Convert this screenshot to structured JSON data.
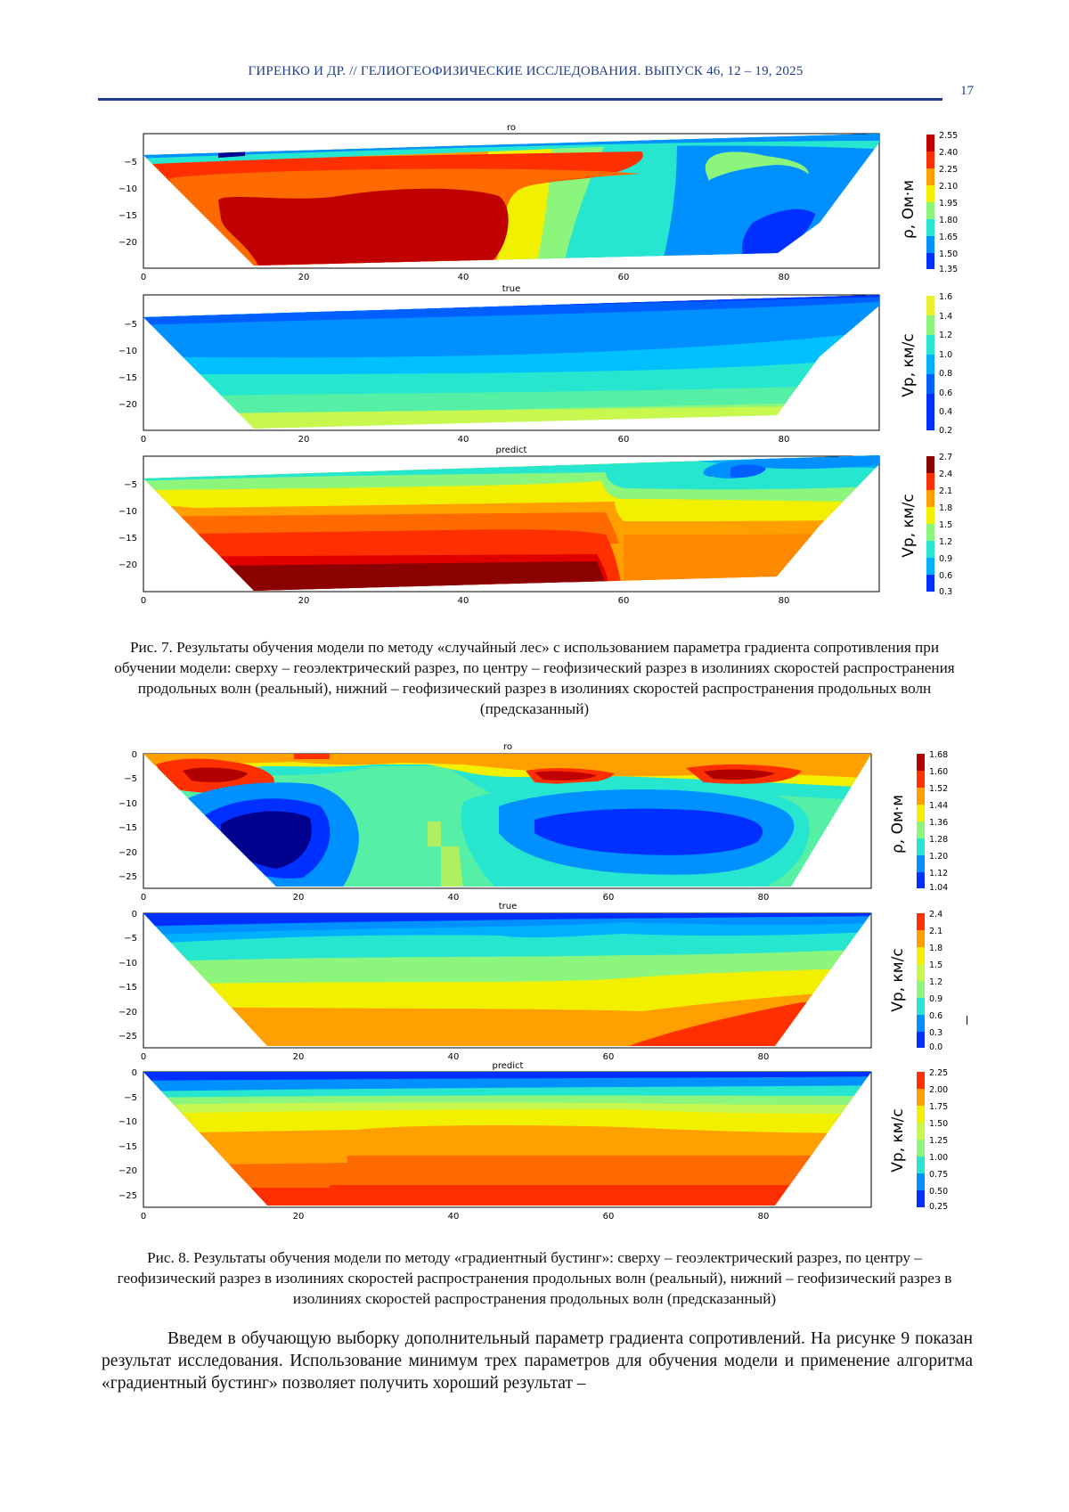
{
  "header": {
    "running_title": "ГИРЕНКО И ДР. // ГЕЛИОГЕОФИЗИЧЕСКИЕ ИССЛЕДОВАНИЯ. ВЫПУСК 46, 12 – 19, 2025",
    "page_number": "17"
  },
  "figures": [
    {
      "caption": "Рис. 7. Результаты обучения модели по методу «случайный лес» с использованием параметра градиента сопротивления при обучении модели: сверху – геоэлектрический разрез, по центру – геофизический разрез в изолиниях скоростей распространения продольных волн (реальный), нижний – геофизический разрез в изолиниях скоростей распространения продольных волн (предсказанный)",
      "panels": [
        {
          "title": "ro",
          "colorbar_label": "ρ, Ом·м",
          "x_ticks": [
            "0",
            "20",
            "40",
            "60",
            "80"
          ],
          "y_ticks": [
            "−5",
            "−10",
            "−15",
            "−20"
          ],
          "colorbar_ticks": [
            "2.55",
            "2.40",
            "2.25",
            "2.10",
            "1.95",
            "1.80",
            "1.65",
            "1.50",
            "1.35"
          ]
        },
        {
          "title": "true",
          "colorbar_label": "Vp, км/с",
          "x_ticks": [
            "0",
            "20",
            "40",
            "60",
            "80"
          ],
          "y_ticks": [
            "−5",
            "−10",
            "−15",
            "−20"
          ],
          "colorbar_ticks": [
            "1.6",
            "1.4",
            "1.2",
            "1.0",
            "0.8",
            "0.6",
            "0.4",
            "0.2"
          ]
        },
        {
          "title": "predict",
          "colorbar_label": "Vp, км/с",
          "x_ticks": [
            "0",
            "20",
            "40",
            "60",
            "80"
          ],
          "y_ticks": [
            "−5",
            "−10",
            "−15",
            "−20"
          ],
          "colorbar_ticks": [
            "2.7",
            "2.4",
            "2.1",
            "1.8",
            "1.5",
            "1.2",
            "0.9",
            "0.6",
            "0.3"
          ]
        }
      ]
    },
    {
      "caption": "Рис. 8. Результаты обучения модели по методу «градиентный бустинг»: сверху – геоэлектрический разрез, по центру – геофизический разрез в изолиниях скоростей распространения продольных волн (реальный), нижний – геофизический разрез в изолиниях скоростей распространения продольных волн (предсказанный)",
      "panels": [
        {
          "title": "ro",
          "colorbar_label": "ρ, Ом·м",
          "x_ticks": [
            "0",
            "20",
            "40",
            "60",
            "80"
          ],
          "y_ticks": [
            "0",
            "−5",
            "−10",
            "−15",
            "−20",
            "−25"
          ],
          "colorbar_ticks": [
            "1.68",
            "1.60",
            "1.52",
            "1.44",
            "1.36",
            "1.28",
            "1.20",
            "1.12",
            "1.04"
          ]
        },
        {
          "title": "true",
          "colorbar_label": "Vp, км/с",
          "x_ticks": [
            "0",
            "20",
            "40",
            "60",
            "80"
          ],
          "y_ticks": [
            "0",
            "−5",
            "−10",
            "−15",
            "−20",
            "−25"
          ],
          "colorbar_ticks": [
            "2.4",
            "2.1",
            "1.8",
            "1.5",
            "1.2",
            "0.9",
            "0.6",
            "0.3",
            "0.0"
          ]
        },
        {
          "title": "predict",
          "colorbar_label": "Vp, км/с",
          "x_ticks": [
            "0",
            "20",
            "40",
            "60",
            "80"
          ],
          "y_ticks": [
            "0",
            "−5",
            "−10",
            "−15",
            "−20",
            "−25"
          ],
          "colorbar_ticks": [
            "2.25",
            "2.00",
            "1.75",
            "1.50",
            "1.25",
            "1.00",
            "0.75",
            "0.50",
            "0.25"
          ]
        }
      ]
    }
  ],
  "body_text": "Введем в обучающую выборку дополнительный параметр градиента сопротивлений. На рисунке 9 показан результат исследования. Использование минимум трех параметров для обучения модели и применение алгоритма «градиентный бустинг» позволяет получить хороший результат –",
  "colors": {
    "header_blue": "#1f3e8a",
    "jet_scale": [
      "#00008f",
      "#0030ff",
      "#0090ff",
      "#27e6cf",
      "#8cf57c",
      "#f0f000",
      "#ffa000",
      "#ff3000",
      "#a00000"
    ]
  }
}
